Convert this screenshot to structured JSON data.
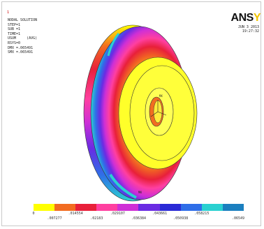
{
  "corner_index": "1",
  "logo": {
    "main": "ANS",
    "accent": "Y"
  },
  "date": "JUN  3 2013",
  "time": "19:27:32",
  "info_lines": [
    "NODAL SOLUTION",
    "",
    "STEP=1",
    "SUB =1",
    "TIME=1",
    "USUM     (AVG)",
    "RSYS=0",
    "DMX =.065491",
    "SMX =.065491"
  ],
  "markers": {
    "max": "MX",
    "min": "MN"
  },
  "legend": {
    "colors": [
      "#ffff00",
      "#f26c21",
      "#e8203a",
      "#ff3fa0",
      "#cf2fd6",
      "#6a2be3",
      "#2a2ad6",
      "#2f6ee8",
      "#2ad1d1",
      "#1b7fbf"
    ],
    "labels_top": [
      "0",
      ".014554",
      ".029107",
      ".043661",
      ".058215"
    ],
    "labels_bottom": [
      ".007277",
      ".02183",
      ".036384",
      ".050938",
      ".06549"
    ]
  },
  "colors": {
    "frame_border": "#c9c9c9",
    "background": "#ffffff"
  }
}
